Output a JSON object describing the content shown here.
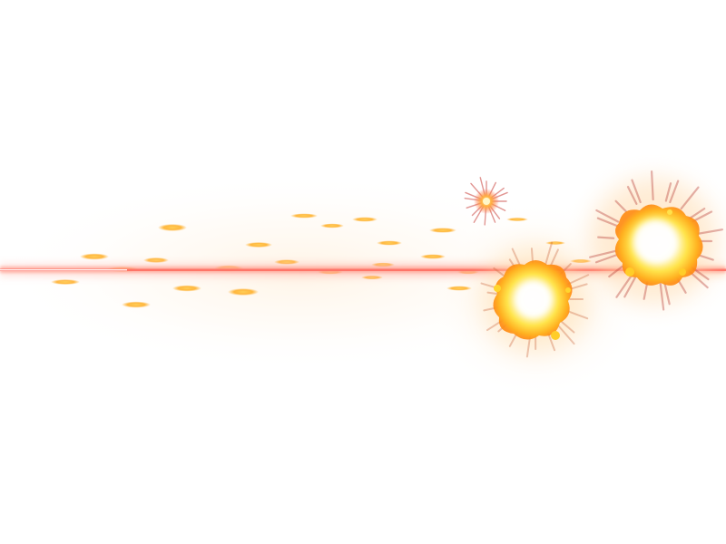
{
  "scene": {
    "background": "#ffffff",
    "effect": "laser-beam-with-explosions",
    "colors": {
      "beam_core": "#ff7a6e",
      "beam_glow": "#ffb3a8",
      "ember": "#ffab1e",
      "ember_glow": "#ffd27a",
      "explosion_core": "#fffbe0",
      "explosion_mid": "#ffe34a",
      "explosion_edge": "#ff9a1a",
      "spark_ray": "#c8403a",
      "glow_halo": "#ffe6c8"
    },
    "icons": [
      "laser-beam",
      "muzzle-spark",
      "explosion-large",
      "explosion-small",
      "ember-particles"
    ]
  }
}
